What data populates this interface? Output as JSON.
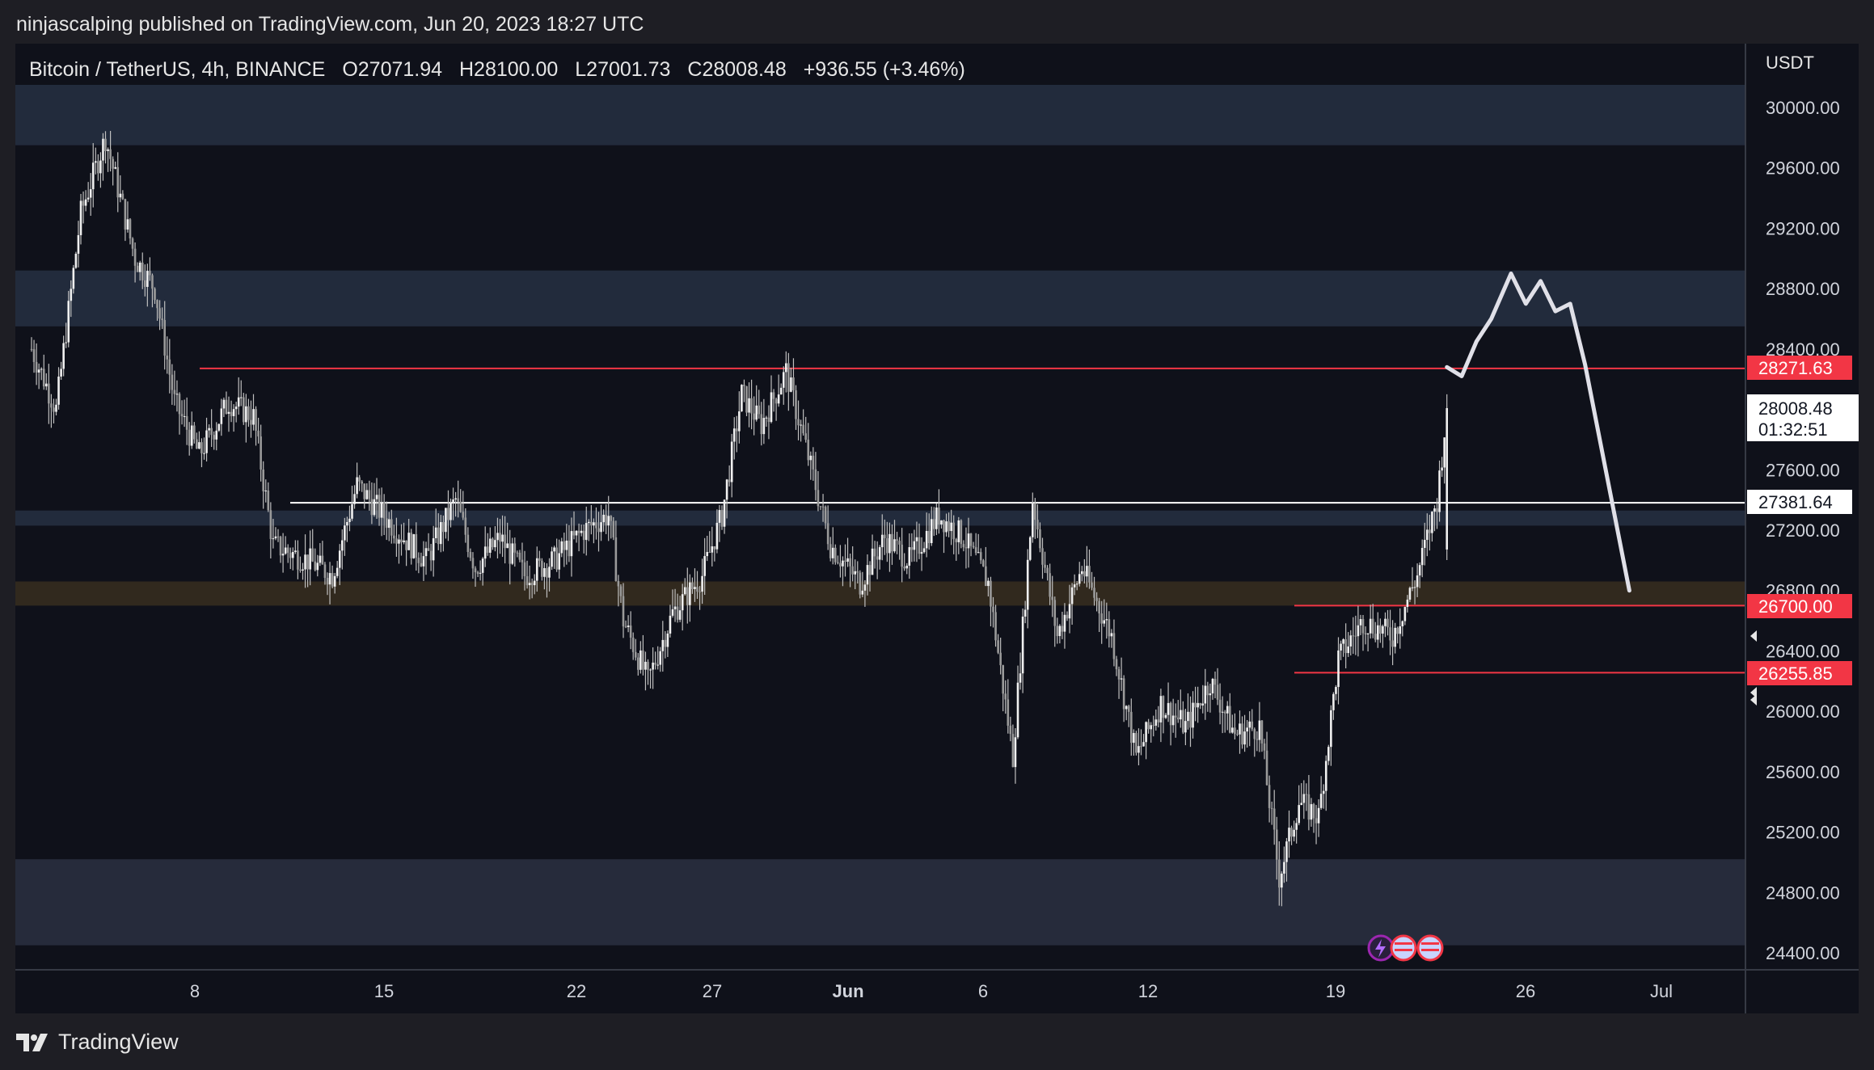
{
  "header": {
    "published_by": "ninjascalping published on TradingView.com, Jun 20, 2023 18:27 UTC"
  },
  "symbol": {
    "name": "Bitcoin / TetherUS, 4h, BINANCE",
    "open": "O27071.94",
    "high": "H28100.00",
    "low": "L27001.73",
    "close": "C28008.48",
    "change": "+936.55 (+3.46%)"
  },
  "price_axis": {
    "currency": "USDT",
    "ticks": [
      "30000.00",
      "29600.00",
      "29200.00",
      "28800.00",
      "28400.00",
      "27600.00",
      "27200.00",
      "26800.00",
      "26400.00",
      "26000.00",
      "25600.00",
      "25200.00",
      "24800.00",
      "24400.00"
    ]
  },
  "time_axis": {
    "ticks": [
      "8",
      "15",
      "22",
      "27",
      "Jun",
      "6",
      "12",
      "19",
      "26",
      "Jul"
    ]
  },
  "price_labels": {
    "resistance": "28271.63",
    "last_price": "28008.48",
    "countdown": "01:32:51",
    "level_white": "27381.64",
    "level_red_upper": "26700.00",
    "level_red_lower": "26255.85"
  },
  "footer": {
    "brand": "TradingView"
  },
  "colors": {
    "background": "#0f111a",
    "candle": "#e5e5e5",
    "zone": "#2a3448",
    "orange_zone": "#3d3120",
    "red_line": "#f23645"
  },
  "chart_data": {
    "type": "candlestick",
    "symbol": "BTCUSDT",
    "timeframe": "4h",
    "exchange": "BINANCE",
    "ohlc_last": {
      "open": 27071.94,
      "high": 28100.0,
      "low": 27001.73,
      "close": 28008.48
    },
    "ylim": [
      24300,
      30300
    ],
    "x_ticks": [
      "8",
      "15",
      "22",
      "27",
      "Jun",
      "6",
      "12",
      "19",
      "26",
      "Jul"
    ],
    "zones": [
      {
        "from": 29750,
        "to": 30150,
        "color": "#2a3448"
      },
      {
        "from": 28550,
        "to": 28920,
        "color": "#2a3448"
      },
      {
        "from": 27230,
        "to": 27330,
        "color": "#2a3448"
      },
      {
        "from": 26700,
        "to": 26860,
        "color": "#3d3120"
      },
      {
        "from": 24450,
        "to": 25020,
        "color": "#2f3447"
      }
    ],
    "horizontal_lines": [
      {
        "price": 28271.63,
        "color": "#f23645"
      },
      {
        "price": 27381.64,
        "color": "#ffffff"
      },
      {
        "price": 26700.0,
        "color": "#f23645"
      },
      {
        "price": 26255.85,
        "color": "#f23645"
      }
    ],
    "close_path": [
      [
        0,
        28400
      ],
      [
        10,
        28000
      ],
      [
        20,
        29300
      ],
      [
        30,
        29800
      ],
      [
        42,
        29000
      ],
      [
        50,
        28800
      ],
      [
        58,
        28050
      ],
      [
        68,
        27700
      ],
      [
        80,
        28050
      ],
      [
        90,
        27950
      ],
      [
        98,
        27100
      ],
      [
        112,
        27000
      ],
      [
        122,
        26900
      ],
      [
        132,
        27500
      ],
      [
        148,
        27200
      ],
      [
        160,
        27000
      ],
      [
        172,
        27400
      ],
      [
        180,
        26950
      ],
      [
        190,
        27150
      ],
      [
        200,
        26900
      ],
      [
        212,
        27000
      ],
      [
        224,
        27200
      ],
      [
        234,
        27300
      ],
      [
        240,
        26600
      ],
      [
        250,
        26200
      ],
      [
        260,
        26650
      ],
      [
        272,
        26900
      ],
      [
        280,
        27300
      ],
      [
        288,
        28100
      ],
      [
        296,
        27900
      ],
      [
        306,
        28250
      ],
      [
        314,
        27750
      ],
      [
        324,
        27100
      ],
      [
        336,
        26850
      ],
      [
        346,
        27150
      ],
      [
        356,
        27000
      ],
      [
        368,
        27300
      ],
      [
        378,
        27150
      ],
      [
        388,
        26850
      ],
      [
        398,
        25700
      ],
      [
        406,
        27400
      ],
      [
        416,
        26500
      ],
      [
        426,
        26950
      ],
      [
        438,
        26500
      ],
      [
        448,
        25700
      ],
      [
        458,
        26050
      ],
      [
        468,
        25900
      ],
      [
        478,
        26200
      ],
      [
        488,
        25850
      ],
      [
        498,
        25900
      ],
      [
        506,
        24900
      ],
      [
        514,
        25400
      ],
      [
        522,
        25300
      ],
      [
        530,
        26350
      ],
      [
        540,
        26600
      ],
      [
        552,
        26500
      ],
      [
        562,
        26900
      ],
      [
        570,
        27400
      ],
      [
        574,
        28008
      ]
    ],
    "drawn_projection_path": [
      [
        574,
        28280
      ],
      [
        580,
        28220
      ],
      [
        586,
        28450
      ],
      [
        592,
        28600
      ],
      [
        600,
        28900
      ],
      [
        606,
        28700
      ],
      [
        612,
        28850
      ],
      [
        618,
        28650
      ],
      [
        624,
        28700
      ],
      [
        630,
        28300
      ],
      [
        636,
        27800
      ],
      [
        642,
        27300
      ],
      [
        648,
        26800
      ]
    ]
  }
}
